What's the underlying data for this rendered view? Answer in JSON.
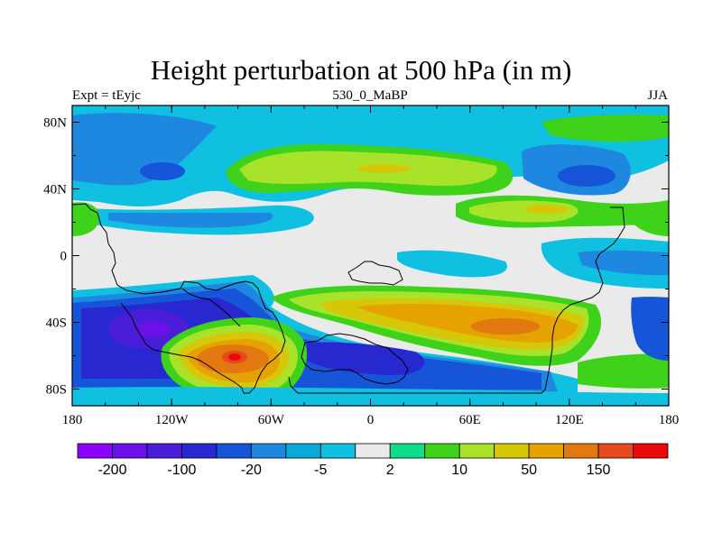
{
  "chart_data": {
    "type": "heatmap",
    "title": "Height perturbation at 500 hPa (in m)",
    "subtitle_left": "Expt = tEyjc",
    "subtitle_center": "530_0_MaBP",
    "subtitle_right": "JJA",
    "x_ticks": [
      "180",
      "120W",
      "60W",
      "0",
      "60E",
      "120E",
      "180"
    ],
    "y_ticks": [
      "80N",
      "40N",
      "0",
      "40S",
      "80S"
    ],
    "colorbar": {
      "colors": [
        "#8b00ff",
        "#6a10e8",
        "#4a1ed8",
        "#2828d0",
        "#1654d8",
        "#1e88e0",
        "#0aaad8",
        "#10c0e0",
        "#eaeaea",
        "#10dc8c",
        "#3ed21a",
        "#a8e22a",
        "#d6c808",
        "#e6a200",
        "#e27810",
        "#e44a1e",
        "#e80a0a"
      ],
      "labels": [
        "-200",
        "-100",
        "-20",
        "-5",
        "2",
        "10",
        "50",
        "150"
      ]
    }
  }
}
